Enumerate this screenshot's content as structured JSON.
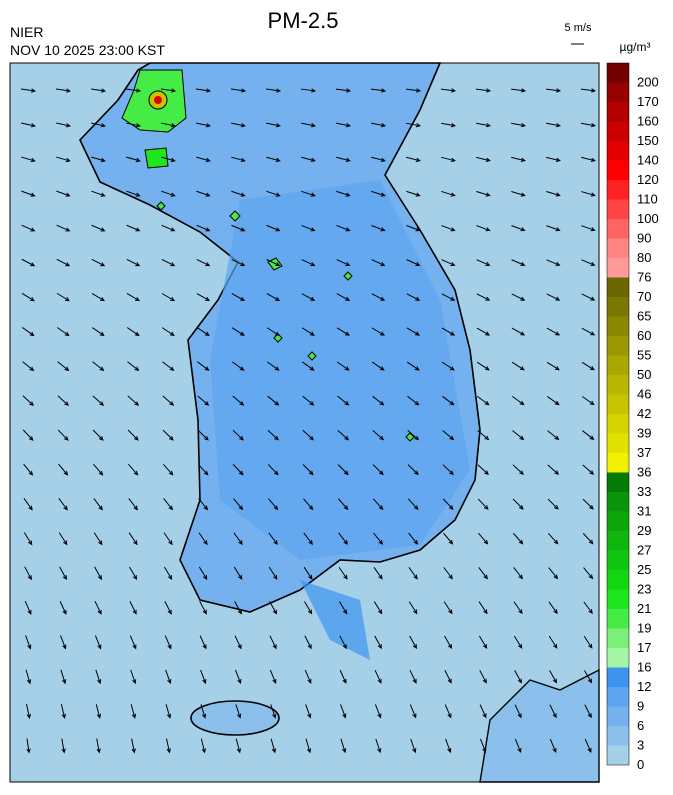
{
  "header": {
    "title": "PM-2.5",
    "agency": "NIER",
    "datetime": "NOV 10 2025 23:00 KST",
    "wind_scale": "5 m/s",
    "unit": "µg/m³"
  },
  "legend": {
    "bins": [
      {
        "label": 0,
        "color": "#a6d0e8"
      },
      {
        "label": 3,
        "color": "#8cc0ec"
      },
      {
        "label": 6,
        "color": "#74b1ee"
      },
      {
        "label": 9,
        "color": "#5ea4ef"
      },
      {
        "label": 12,
        "color": "#3c94ee"
      },
      {
        "label": 16,
        "color": "#a4f5a4"
      },
      {
        "label": 17,
        "color": "#7af07a"
      },
      {
        "label": 19,
        "color": "#46ec46"
      },
      {
        "label": 21,
        "color": "#1ee61e"
      },
      {
        "label": 23,
        "color": "#12d612"
      },
      {
        "label": 25,
        "color": "#10c610"
      },
      {
        "label": 27,
        "color": "#0eb60e"
      },
      {
        "label": 29,
        "color": "#0ca60c"
      },
      {
        "label": 31,
        "color": "#0a940a"
      },
      {
        "label": 33,
        "color": "#067a06"
      },
      {
        "label": 36,
        "color": "#f2f200"
      },
      {
        "label": 37,
        "color": "#e2e200"
      },
      {
        "label": 39,
        "color": "#d4d400"
      },
      {
        "label": 42,
        "color": "#c6c400"
      },
      {
        "label": 46,
        "color": "#b8b600"
      },
      {
        "label": 50,
        "color": "#aaa800"
      },
      {
        "label": 55,
        "color": "#9a9800"
      },
      {
        "label": 60,
        "color": "#8a8800"
      },
      {
        "label": 65,
        "color": "#7a7800"
      },
      {
        "label": 70,
        "color": "#6a6600"
      },
      {
        "label": 76,
        "color": "#ff9a9a"
      },
      {
        "label": 80,
        "color": "#ff8484"
      },
      {
        "label": 90,
        "color": "#ff6464"
      },
      {
        "label": 100,
        "color": "#ff4444"
      },
      {
        "label": 110,
        "color": "#ff2222"
      },
      {
        "label": 120,
        "color": "#ff0000"
      },
      {
        "label": 140,
        "color": "#e20000"
      },
      {
        "label": 150,
        "color": "#ca0000"
      },
      {
        "label": 160,
        "color": "#b20000"
      },
      {
        "label": 170,
        "color": "#960000"
      },
      {
        "label": 200,
        "color": "#720000"
      }
    ]
  }
}
